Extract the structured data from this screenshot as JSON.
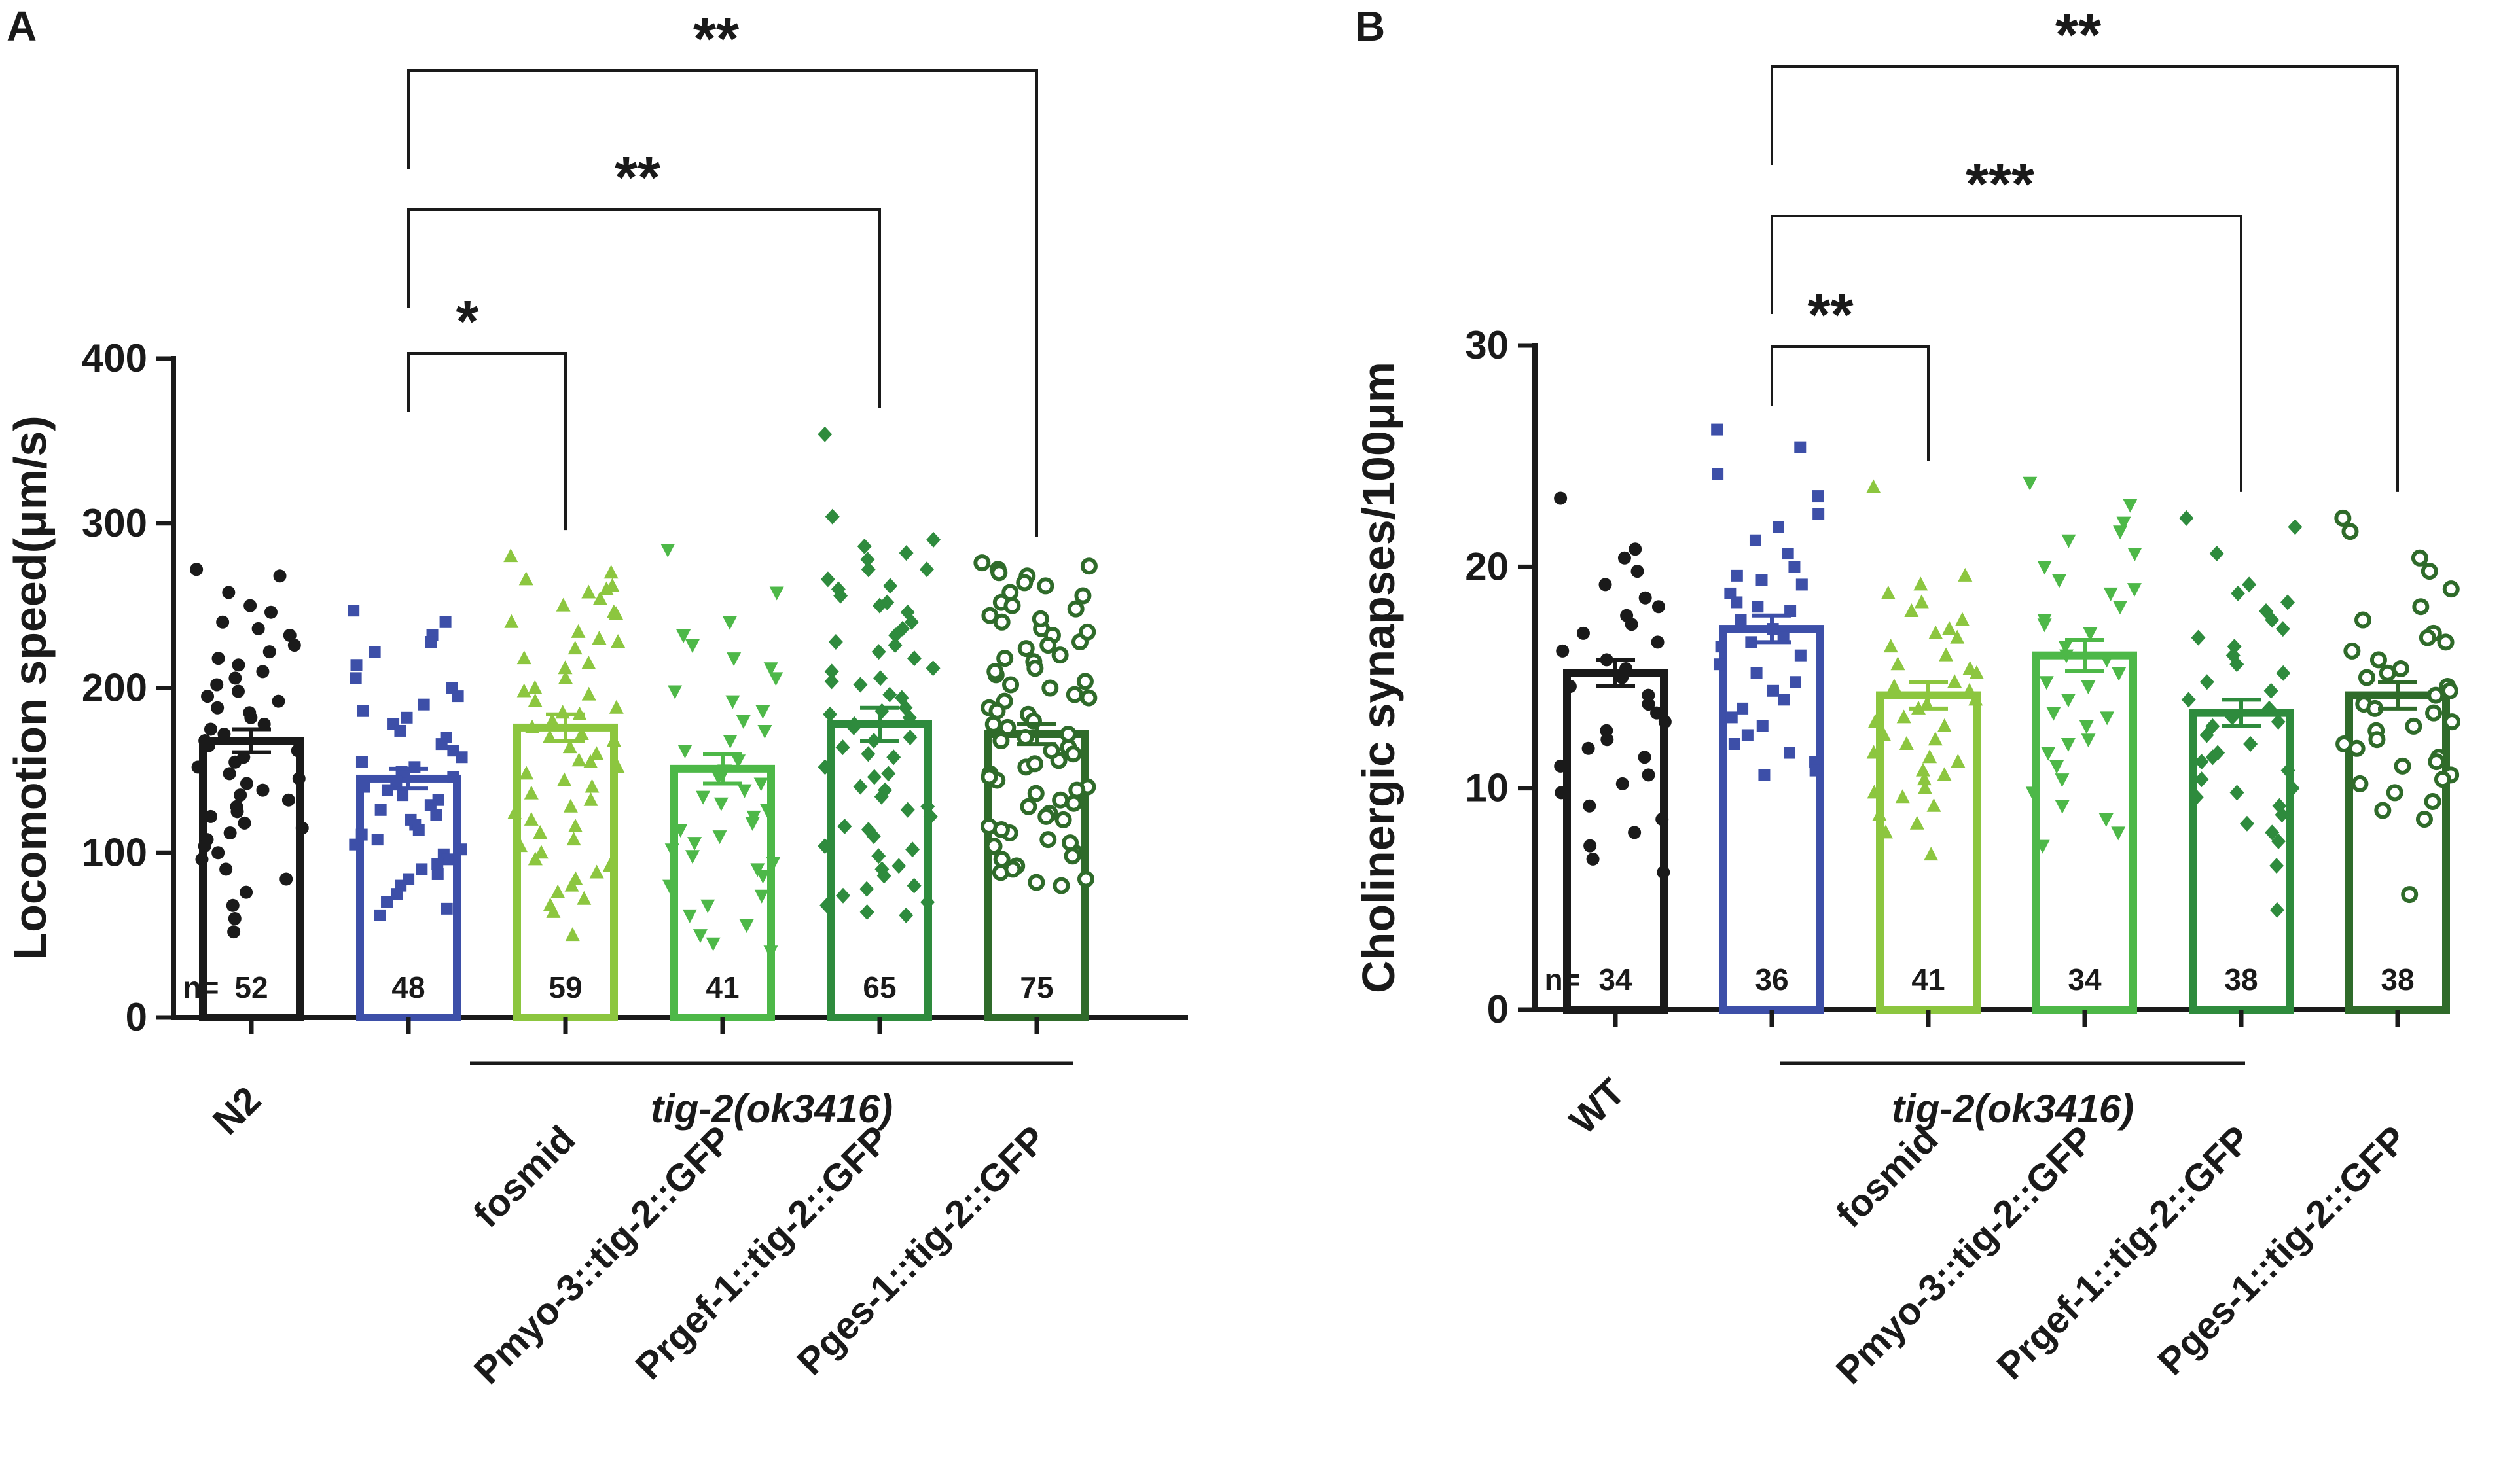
{
  "chart_data": [
    {
      "type": "bar",
      "panel_label": "A",
      "title": "",
      "ylabel": "Locomotion speed(μm/s)",
      "xlabel": "",
      "ylim": [
        0,
        400
      ],
      "yticks": [
        0,
        100,
        200,
        300,
        400
      ],
      "n_prefix": "n=",
      "categories": [
        "N2",
        "",
        "fosmid",
        "Pmyo-3::tig-2::GFP",
        "Prgef-1::tig-2::GFP",
        "Pges-1::tig-2::GFP"
      ],
      "values": [
        168,
        145,
        176,
        151,
        178,
        172
      ],
      "sem": [
        7,
        6,
        8,
        9,
        10,
        6
      ],
      "n": [
        "52",
        "48",
        "59",
        "41",
        "65",
        "75"
      ],
      "colors": [
        "#1a1a1a",
        "#3d4fa8",
        "#8cc63f",
        "#4db848",
        "#2e8b3d",
        "#2f6b2a"
      ],
      "markers": [
        "circle",
        "square",
        "triangle-up",
        "triangle-down",
        "diamond",
        "circle-open"
      ],
      "points": [
        [
          272,
          268,
          258,
          250,
          246,
          240,
          236,
          232,
          226,
          222,
          218,
          214,
          210,
          206,
          202,
          198,
          195,
          192,
          188,
          185,
          182,
          178,
          175,
          172,
          168,
          165,
          162,
          158,
          155,
          152,
          148,
          145,
          142,
          138,
          135,
          132,
          128,
          125,
          122,
          118,
          115,
          112,
          108,
          104,
          100,
          96,
          90,
          84,
          76,
          68,
          60,
          52
        ],
        [
          247,
          240,
          232,
          228,
          222,
          214,
          206,
          200,
          195,
          190,
          186,
          182,
          178,
          174,
          170,
          166,
          162,
          158,
          155,
          152,
          149,
          146,
          143,
          140,
          138,
          135,
          132,
          129,
          126,
          123,
          120,
          117,
          114,
          111,
          108,
          105,
          102,
          99,
          96,
          93,
          90,
          87,
          84,
          80,
          75,
          70,
          66,
          62
        ],
        [
          280,
          270,
          266,
          262,
          258,
          254,
          250,
          246,
          240,
          234,
          228,
          224,
          218,
          212,
          206,
          200,
          196,
          192,
          188,
          184,
          180,
          176,
          172,
          168,
          164,
          160,
          156,
          152,
          148,
          144,
          140,
          136,
          132,
          128,
          124,
          120,
          116,
          112,
          108,
          104,
          100,
          96,
          92,
          88,
          84,
          80,
          76,
          72,
          68,
          64,
          260,
          245,
          230,
          215,
          198,
          185,
          170,
          155,
          50
        ],
        [
          284,
          258,
          240,
          232,
          226,
          218,
          212,
          206,
          198,
          192,
          186,
          180,
          174,
          168,
          162,
          156,
          150,
          146,
          142,
          138,
          134,
          130,
          126,
          122,
          118,
          114,
          110,
          106,
          102,
          98,
          94,
          90,
          86,
          80,
          74,
          68,
          62,
          56,
          50,
          45,
          40
        ],
        [
          354,
          304,
          290,
          286,
          282,
          278,
          272,
          266,
          260,
          252,
          246,
          240,
          232,
          226,
          218,
          210,
          202,
          194,
          188,
          182,
          176,
          170,
          164,
          158,
          152,
          146,
          140,
          134,
          128,
          122,
          116,
          110,
          104,
          98,
          92,
          86,
          80,
          74,
          68,
          62,
          262,
          256,
          236,
          222,
          212,
          204,
          196,
          186,
          178,
          168,
          160,
          148,
          138,
          126,
          114,
          102,
          90,
          78,
          70,
          64,
          272,
          250,
          228,
          206,
          184
        ],
        [
          276,
          272,
          268,
          262,
          258,
          252,
          248,
          244,
          240,
          236,
          232,
          228,
          224,
          220,
          216,
          212,
          208,
          204,
          200,
          196,
          192,
          188,
          184,
          180,
          176,
          172,
          168,
          164,
          160,
          156,
          152,
          148,
          144,
          140,
          136,
          132,
          128,
          124,
          120,
          116,
          112,
          108,
          104,
          100,
          96,
          92,
          88,
          84,
          80,
          274,
          270,
          264,
          256,
          250,
          242,
          234,
          226,
          218,
          210,
          202,
          194,
          186,
          178,
          170,
          162,
          154,
          146,
          138,
          130,
          122,
          114,
          106,
          98,
          90,
          82
        ]
      ],
      "group_label": "tig-2(ok3416)",
      "comparisons": [
        {
          "from": 1,
          "to": 2,
          "label": "*"
        },
        {
          "from": 1,
          "to": 4,
          "label": "**"
        },
        {
          "from": 1,
          "to": 5,
          "label": "**"
        }
      ]
    },
    {
      "type": "bar",
      "panel_label": "B",
      "title": "",
      "ylabel": "Cholinergic synapses/100μm",
      "xlabel": "",
      "ylim": [
        0,
        30
      ],
      "yticks": [
        0,
        10,
        20,
        30
      ],
      "n_prefix": "n=",
      "categories": [
        "WT",
        "",
        "fosmid",
        "Pmyo-3::tig-2::GFP",
        "Prgef-1::tig-2::GFP",
        "Pges-1::tig-2::GFP"
      ],
      "values": [
        15.2,
        17.2,
        14.2,
        16.0,
        13.4,
        14.2
      ],
      "sem": [
        0.6,
        0.6,
        0.6,
        0.7,
        0.6,
        0.6
      ],
      "n": [
        "34",
        "36",
        "41",
        "34",
        "38",
        "38"
      ],
      "colors": [
        "#1a1a1a",
        "#3d4fa8",
        "#8cc63f",
        "#4db848",
        "#2e8b3d",
        "#2f6b2a"
      ],
      "markers": [
        "circle",
        "square",
        "triangle-up",
        "triangle-down",
        "diamond",
        "circle-open"
      ],
      "points": [
        [
          23.1,
          20.8,
          20.4,
          19.8,
          19.2,
          18.6,
          18.2,
          17.8,
          17.4,
          17.0,
          16.6,
          16.2,
          15.8,
          15.4,
          15.0,
          14.6,
          14.2,
          13.8,
          13.4,
          13.0,
          12.6,
          12.2,
          11.8,
          11.4,
          11.0,
          10.6,
          10.2,
          9.8,
          9.2,
          8.6,
          8.0,
          7.4,
          6.8,
          6.2
        ],
        [
          26.2,
          25.4,
          24.2,
          23.2,
          22.4,
          21.8,
          21.2,
          20.6,
          20.0,
          19.6,
          19.2,
          18.8,
          18.4,
          18.0,
          17.6,
          17.2,
          16.8,
          16.4,
          16.0,
          15.6,
          15.2,
          14.8,
          14.4,
          14.0,
          13.6,
          13.2,
          12.8,
          12.4,
          12.0,
          11.6,
          11.2,
          10.8,
          10.6,
          19.4,
          18.2,
          16.6
        ],
        [
          23.6,
          19.6,
          19.2,
          18.8,
          18.4,
          18.0,
          17.6,
          17.2,
          16.8,
          16.4,
          16.0,
          15.6,
          15.2,
          14.8,
          14.4,
          14.0,
          13.6,
          13.2,
          12.8,
          12.4,
          12.0,
          11.6,
          11.2,
          10.8,
          10.4,
          10.0,
          9.6,
          9.2,
          8.8,
          8.4,
          8.0,
          7.0,
          17.0,
          15.4,
          14.6,
          13.8,
          13.0,
          12.2,
          11.4,
          10.6,
          9.8
        ],
        [
          23.8,
          22.8,
          22.0,
          21.2,
          20.6,
          20.0,
          19.4,
          18.8,
          18.2,
          17.6,
          17.0,
          16.4,
          15.8,
          15.2,
          14.6,
          14.0,
          13.4,
          12.8,
          12.2,
          11.6,
          11.0,
          10.4,
          9.8,
          9.2,
          8.6,
          8.0,
          7.4,
          21.6,
          19.0,
          17.4,
          16.0,
          14.8,
          13.2,
          12.0
        ],
        [
          22.2,
          21.8,
          20.6,
          19.2,
          18.8,
          18.4,
          18.0,
          17.6,
          17.2,
          16.8,
          16.4,
          16.0,
          15.6,
          15.2,
          14.8,
          14.4,
          14.0,
          13.6,
          13.2,
          12.8,
          12.4,
          12.0,
          11.6,
          11.2,
          10.8,
          10.4,
          10.0,
          9.6,
          9.2,
          8.8,
          8.4,
          8.0,
          7.6,
          6.5,
          4.5,
          13.0,
          11.4,
          9.8
        ],
        [
          22.2,
          21.6,
          20.4,
          19.8,
          19.0,
          18.2,
          17.6,
          17.0,
          16.6,
          16.2,
          15.8,
          15.4,
          15.0,
          14.6,
          14.2,
          13.8,
          13.4,
          13.0,
          12.6,
          12.2,
          11.8,
          11.4,
          11.0,
          10.6,
          10.2,
          9.8,
          9.4,
          9.0,
          8.6,
          5.2,
          16.8,
          15.2,
          14.4,
          13.6,
          12.8,
          12.0,
          11.2,
          10.4
        ]
      ],
      "group_label": "tig-2(ok3416)",
      "comparisons": [
        {
          "from": 1,
          "to": 2,
          "label": "**"
        },
        {
          "from": 1,
          "to": 4,
          "label": "***"
        },
        {
          "from": 1,
          "to": 5,
          "label": "**"
        }
      ]
    }
  ]
}
